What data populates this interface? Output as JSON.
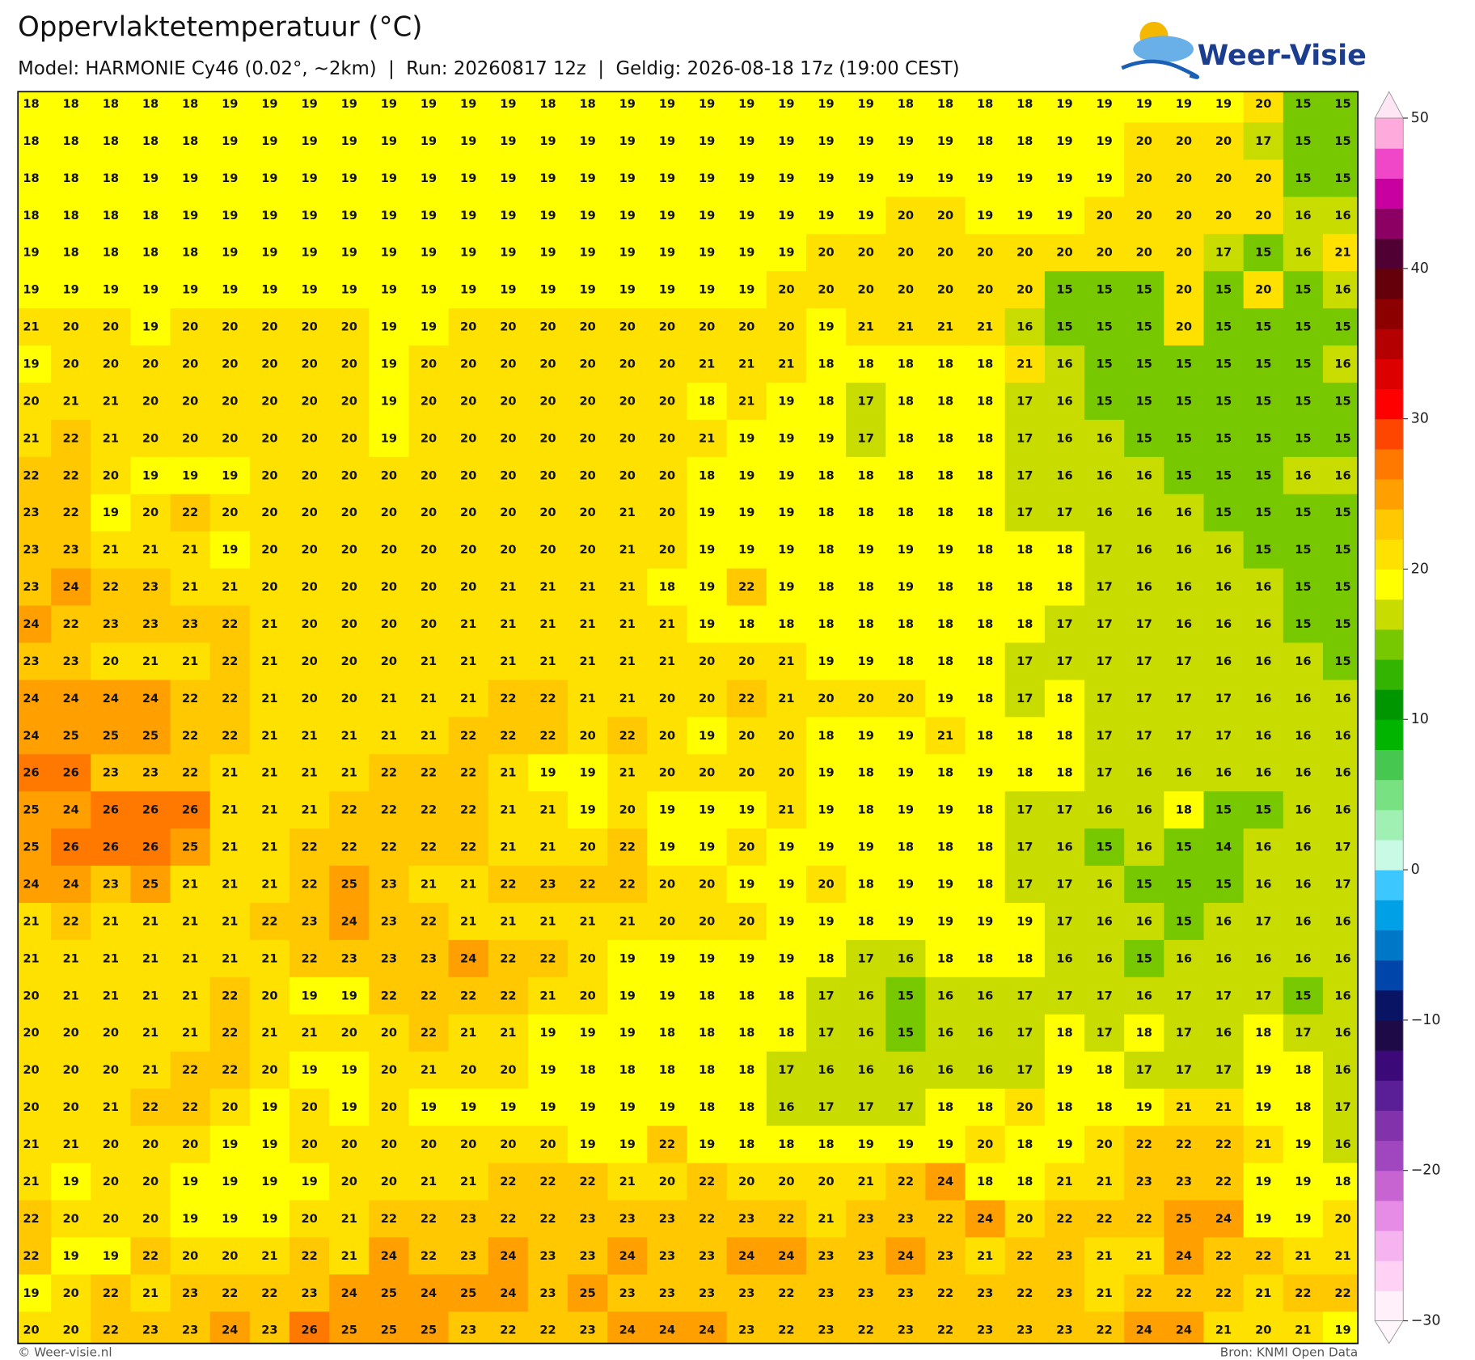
{
  "chart_data": {
    "type": "heatmap",
    "title": "Oppervlaktetemperatuur (°C)",
    "subtitle": "Model: HARMONIE Cy46 (0.02°, ~2km)  |  Run: 20260817 12z  |  Geldig: 2026-08-18 17z (19:00 CEST)",
    "logo": "Weer-Visie",
    "footer_left": "© Weer-visie.nl",
    "footer_right": "Bron: KNMI Open Data",
    "values": [
      [
        18,
        18,
        18,
        18,
        18,
        19,
        19,
        19,
        19,
        19,
        19,
        19,
        19,
        18,
        18,
        19,
        19,
        19,
        19,
        19,
        19,
        19,
        18,
        18,
        18,
        18,
        19,
        19,
        19,
        19,
        19,
        20,
        15,
        15
      ],
      [
        18,
        18,
        18,
        18,
        18,
        19,
        19,
        19,
        19,
        19,
        19,
        19,
        19,
        19,
        19,
        19,
        19,
        19,
        19,
        19,
        19,
        19,
        19,
        19,
        18,
        18,
        19,
        19,
        20,
        20,
        20,
        17,
        15,
        15
      ],
      [
        18,
        18,
        18,
        19,
        19,
        19,
        19,
        19,
        19,
        19,
        19,
        19,
        19,
        19,
        19,
        19,
        19,
        19,
        19,
        19,
        19,
        19,
        19,
        19,
        19,
        19,
        19,
        19,
        20,
        20,
        20,
        20,
        15,
        15
      ],
      [
        18,
        18,
        18,
        18,
        19,
        19,
        19,
        19,
        19,
        19,
        19,
        19,
        19,
        19,
        19,
        19,
        19,
        19,
        19,
        19,
        19,
        19,
        20,
        20,
        19,
        19,
        19,
        20,
        20,
        20,
        20,
        20,
        16,
        16
      ],
      [
        19,
        18,
        18,
        18,
        18,
        19,
        19,
        19,
        19,
        19,
        19,
        19,
        19,
        19,
        19,
        19,
        19,
        19,
        19,
        19,
        20,
        20,
        20,
        20,
        20,
        20,
        20,
        20,
        20,
        20,
        17,
        15,
        16,
        21
      ],
      [
        19,
        19,
        19,
        19,
        19,
        19,
        19,
        19,
        19,
        19,
        19,
        19,
        19,
        19,
        19,
        19,
        19,
        19,
        19,
        20,
        20,
        20,
        20,
        20,
        20,
        20,
        15,
        15,
        15,
        20,
        15,
        20,
        15,
        16
      ],
      [
        21,
        20,
        20,
        19,
        20,
        20,
        20,
        20,
        20,
        19,
        19,
        20,
        20,
        20,
        20,
        20,
        20,
        20,
        20,
        20,
        19,
        21,
        21,
        21,
        21,
        16,
        15,
        15,
        15,
        20,
        15,
        15,
        15,
        15
      ],
      [
        19,
        20,
        20,
        20,
        20,
        20,
        20,
        20,
        20,
        19,
        20,
        20,
        20,
        20,
        20,
        20,
        20,
        21,
        21,
        21,
        18,
        18,
        18,
        18,
        18,
        21,
        16,
        15,
        15,
        15,
        15,
        15,
        15,
        16
      ],
      [
        20,
        21,
        21,
        20,
        20,
        20,
        20,
        20,
        20,
        19,
        20,
        20,
        20,
        20,
        20,
        20,
        20,
        18,
        21,
        19,
        18,
        17,
        18,
        18,
        18,
        17,
        16,
        15,
        15,
        15,
        15,
        15,
        15,
        15
      ],
      [
        21,
        22,
        21,
        20,
        20,
        20,
        20,
        20,
        20,
        19,
        20,
        20,
        20,
        20,
        20,
        20,
        20,
        21,
        19,
        19,
        19,
        17,
        18,
        18,
        18,
        17,
        16,
        16,
        15,
        15,
        15,
        15,
        15,
        15
      ],
      [
        22,
        22,
        20,
        19,
        19,
        19,
        20,
        20,
        20,
        20,
        20,
        20,
        20,
        20,
        20,
        20,
        20,
        18,
        19,
        19,
        18,
        18,
        18,
        18,
        18,
        17,
        16,
        16,
        16,
        15,
        15,
        15,
        16,
        16
      ],
      [
        23,
        22,
        19,
        20,
        22,
        20,
        20,
        20,
        20,
        20,
        20,
        20,
        20,
        20,
        20,
        21,
        20,
        19,
        19,
        19,
        18,
        18,
        18,
        18,
        18,
        17,
        17,
        16,
        16,
        16,
        15,
        15,
        15,
        15
      ],
      [
        23,
        23,
        21,
        21,
        21,
        19,
        20,
        20,
        20,
        20,
        20,
        20,
        20,
        20,
        20,
        21,
        20,
        19,
        19,
        19,
        18,
        19,
        19,
        19,
        18,
        18,
        18,
        17,
        16,
        16,
        16,
        15,
        15,
        15
      ],
      [
        23,
        24,
        22,
        23,
        21,
        21,
        20,
        20,
        20,
        20,
        20,
        20,
        21,
        21,
        21,
        21,
        18,
        19,
        22,
        19,
        18,
        18,
        19,
        18,
        18,
        18,
        18,
        17,
        16,
        16,
        16,
        16,
        15,
        15
      ],
      [
        24,
        22,
        23,
        23,
        23,
        22,
        21,
        20,
        20,
        20,
        20,
        21,
        21,
        21,
        21,
        21,
        21,
        19,
        18,
        18,
        18,
        18,
        18,
        18,
        18,
        18,
        17,
        17,
        17,
        16,
        16,
        16,
        15,
        15
      ],
      [
        23,
        23,
        20,
        21,
        21,
        22,
        21,
        20,
        20,
        20,
        21,
        21,
        21,
        21,
        21,
        21,
        21,
        20,
        20,
        21,
        19,
        19,
        18,
        18,
        18,
        17,
        17,
        17,
        17,
        17,
        16,
        16,
        16,
        15
      ],
      [
        24,
        24,
        24,
        24,
        22,
        22,
        21,
        20,
        20,
        21,
        21,
        21,
        22,
        22,
        21,
        21,
        20,
        20,
        22,
        21,
        20,
        20,
        20,
        19,
        18,
        17,
        18,
        17,
        17,
        17,
        17,
        16,
        16,
        16
      ],
      [
        24,
        25,
        25,
        25,
        22,
        22,
        21,
        21,
        21,
        21,
        21,
        22,
        22,
        22,
        20,
        22,
        20,
        19,
        20,
        20,
        18,
        19,
        19,
        21,
        18,
        18,
        18,
        17,
        17,
        17,
        17,
        16,
        16,
        16
      ],
      [
        26,
        26,
        23,
        23,
        22,
        21,
        21,
        21,
        21,
        22,
        22,
        22,
        21,
        19,
        19,
        21,
        20,
        20,
        20,
        20,
        19,
        18,
        19,
        18,
        19,
        18,
        18,
        17,
        16,
        16,
        16,
        16,
        16,
        16
      ],
      [
        25,
        24,
        26,
        26,
        26,
        21,
        21,
        21,
        22,
        22,
        22,
        22,
        21,
        21,
        19,
        20,
        19,
        19,
        19,
        21,
        19,
        18,
        19,
        19,
        18,
        17,
        17,
        16,
        16,
        18,
        15,
        15,
        16,
        16
      ],
      [
        25,
        26,
        26,
        26,
        25,
        21,
        21,
        22,
        22,
        22,
        22,
        22,
        21,
        21,
        20,
        22,
        19,
        19,
        20,
        19,
        19,
        19,
        18,
        18,
        18,
        17,
        16,
        15,
        16,
        15,
        14,
        16,
        16,
        17
      ],
      [
        24,
        24,
        23,
        25,
        21,
        21,
        21,
        22,
        25,
        23,
        21,
        21,
        22,
        23,
        22,
        22,
        20,
        20,
        19,
        19,
        20,
        18,
        19,
        19,
        18,
        17,
        17,
        16,
        15,
        15,
        15,
        16,
        16,
        17
      ],
      [
        21,
        22,
        21,
        21,
        21,
        21,
        22,
        23,
        24,
        23,
        22,
        21,
        21,
        21,
        21,
        21,
        20,
        20,
        20,
        19,
        19,
        18,
        19,
        19,
        19,
        19,
        17,
        16,
        16,
        15,
        16,
        17,
        16,
        16
      ],
      [
        21,
        21,
        21,
        21,
        21,
        21,
        21,
        22,
        23,
        23,
        23,
        24,
        22,
        22,
        20,
        19,
        19,
        19,
        19,
        19,
        18,
        17,
        16,
        18,
        18,
        18,
        16,
        16,
        15,
        16,
        16,
        16,
        16,
        16
      ],
      [
        20,
        21,
        21,
        21,
        21,
        22,
        20,
        19,
        19,
        22,
        22,
        22,
        22,
        21,
        20,
        19,
        19,
        18,
        18,
        18,
        17,
        16,
        15,
        16,
        16,
        17,
        17,
        17,
        16,
        17,
        17,
        17,
        15,
        16
      ],
      [
        20,
        20,
        20,
        21,
        21,
        22,
        21,
        21,
        20,
        20,
        22,
        21,
        21,
        19,
        19,
        19,
        18,
        18,
        18,
        18,
        17,
        16,
        15,
        16,
        16,
        17,
        18,
        17,
        18,
        17,
        16,
        18,
        17,
        16
      ],
      [
        20,
        20,
        20,
        21,
        22,
        22,
        20,
        19,
        19,
        20,
        21,
        20,
        20,
        19,
        18,
        18,
        18,
        18,
        18,
        17,
        16,
        16,
        16,
        16,
        16,
        17,
        19,
        18,
        17,
        17,
        17,
        19,
        18,
        16
      ],
      [
        20,
        20,
        21,
        22,
        22,
        20,
        19,
        20,
        19,
        20,
        19,
        19,
        19,
        19,
        19,
        19,
        19,
        18,
        18,
        16,
        17,
        17,
        17,
        18,
        18,
        20,
        18,
        18,
        19,
        21,
        21,
        19,
        18,
        17
      ],
      [
        21,
        21,
        20,
        20,
        20,
        19,
        19,
        20,
        20,
        20,
        20,
        20,
        20,
        20,
        19,
        19,
        22,
        19,
        18,
        18,
        18,
        19,
        19,
        19,
        20,
        18,
        19,
        20,
        22,
        22,
        22,
        21,
        19,
        16
      ],
      [
        21,
        19,
        20,
        20,
        19,
        19,
        19,
        19,
        20,
        20,
        21,
        21,
        22,
        22,
        22,
        21,
        20,
        22,
        20,
        20,
        20,
        21,
        22,
        24,
        18,
        18,
        21,
        21,
        23,
        23,
        22,
        19,
        19,
        18
      ],
      [
        22,
        20,
        20,
        20,
        19,
        19,
        19,
        20,
        21,
        22,
        22,
        23,
        22,
        22,
        23,
        23,
        23,
        22,
        23,
        22,
        21,
        23,
        23,
        22,
        24,
        20,
        22,
        22,
        22,
        25,
        24,
        19,
        19,
        20
      ],
      [
        22,
        19,
        19,
        22,
        20,
        20,
        21,
        22,
        21,
        24,
        22,
        23,
        24,
        23,
        23,
        24,
        23,
        23,
        24,
        24,
        23,
        23,
        24,
        23,
        21,
        22,
        23,
        21,
        21,
        24,
        22,
        22,
        21,
        21
      ],
      [
        19,
        20,
        22,
        21,
        23,
        22,
        22,
        23,
        24,
        25,
        24,
        25,
        24,
        23,
        25,
        23,
        23,
        23,
        23,
        22,
        23,
        23,
        23,
        22,
        23,
        22,
        23,
        21,
        22,
        22,
        22,
        21,
        22,
        22
      ],
      [
        20,
        20,
        22,
        23,
        23,
        24,
        23,
        26,
        25,
        25,
        25,
        23,
        22,
        22,
        23,
        24,
        24,
        24,
        23,
        22,
        23,
        22,
        23,
        22,
        23,
        23,
        23,
        22,
        24,
        24,
        21,
        20,
        21,
        19
      ]
    ],
    "colorbar": {
      "lim": [
        -30,
        50
      ],
      "ticks": [
        50,
        40,
        30,
        20,
        10,
        0,
        {
          "value": -10,
          "label": "−10"
        },
        {
          "value": -20,
          "label": "−20"
        },
        {
          "value": -30,
          "label": "−30"
        }
      ],
      "colors": [
        "#fff0fa",
        "#ffd2f5",
        "#f5b4f0",
        "#e68ce6",
        "#c864d2",
        "#a046be",
        "#8232aa",
        "#5a1e96",
        "#3c0a78",
        "#1e0a46",
        "#0a1464",
        "#0046aa",
        "#0078c8",
        "#00a0e6",
        "#3cc8ff",
        "#c8fae6",
        "#a0f0b4",
        "#78e182",
        "#46c850",
        "#00b400",
        "#009600",
        "#32b400",
        "#78c800",
        "#c8dc00",
        "#ffff00",
        "#ffe100",
        "#ffc800",
        "#ffa000",
        "#ff7800",
        "#ff4600",
        "#ff0000",
        "#dc0000",
        "#b40000",
        "#8c0000",
        "#64000a",
        "#500032",
        "#8c0064",
        "#c800a0",
        "#f046c8",
        "#ffaadc"
      ]
    }
  }
}
